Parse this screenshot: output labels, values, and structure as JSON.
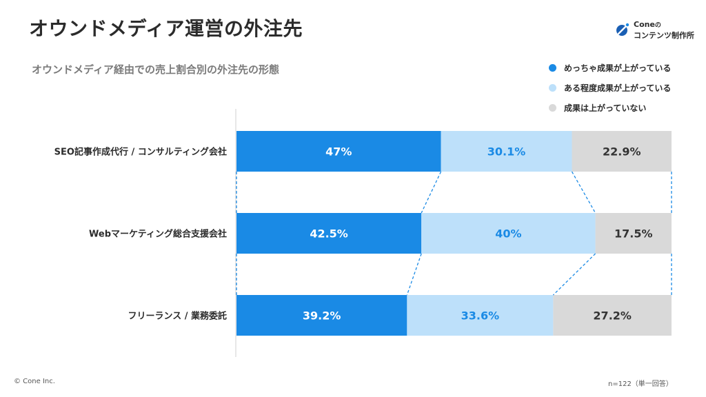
{
  "title": "オウンドメディア運営の外注先",
  "subtitle": "オウンドメディア経由での売上割合別の外注先の形態",
  "logo": {
    "line1_prefix": "Cone",
    "line1_suffix": "の",
    "line2": "コンテンツ制作所"
  },
  "colors": {
    "series1": "#1a8ae5",
    "series2": "#bde0fa",
    "series3": "#d9d9d9",
    "label_on_series1": "#ffffff",
    "label_on_series2": "#1a8ae5",
    "label_on_series3": "#333333"
  },
  "chart_data": {
    "type": "bar",
    "orientation": "horizontal",
    "stacked": "100%",
    "categories": [
      "SEO記事作成代行 / コンサルティング会社",
      "Webマーケティング総合支援会社",
      "フリーランス / 業務委託"
    ],
    "series": [
      {
        "name": "めっちゃ成果が上がっている",
        "values": [
          47,
          42.5,
          39.2
        ],
        "labels": [
          "47%",
          "42.5%",
          "39.2%"
        ]
      },
      {
        "name": "ある程度成果が上がっている",
        "values": [
          30.1,
          40,
          33.6
        ],
        "labels": [
          "30.1%",
          "40%",
          "33.6%"
        ]
      },
      {
        "name": "成果は上がっていない",
        "values": [
          22.9,
          17.5,
          27.2
        ],
        "labels": [
          "22.9%",
          "17.5%",
          "27.2%"
        ]
      }
    ],
    "legend_position": "top-right",
    "grid": false,
    "connector_lines": true,
    "note": "n=122（単一回答）"
  },
  "footer": {
    "copyright": "© Cone Inc."
  }
}
